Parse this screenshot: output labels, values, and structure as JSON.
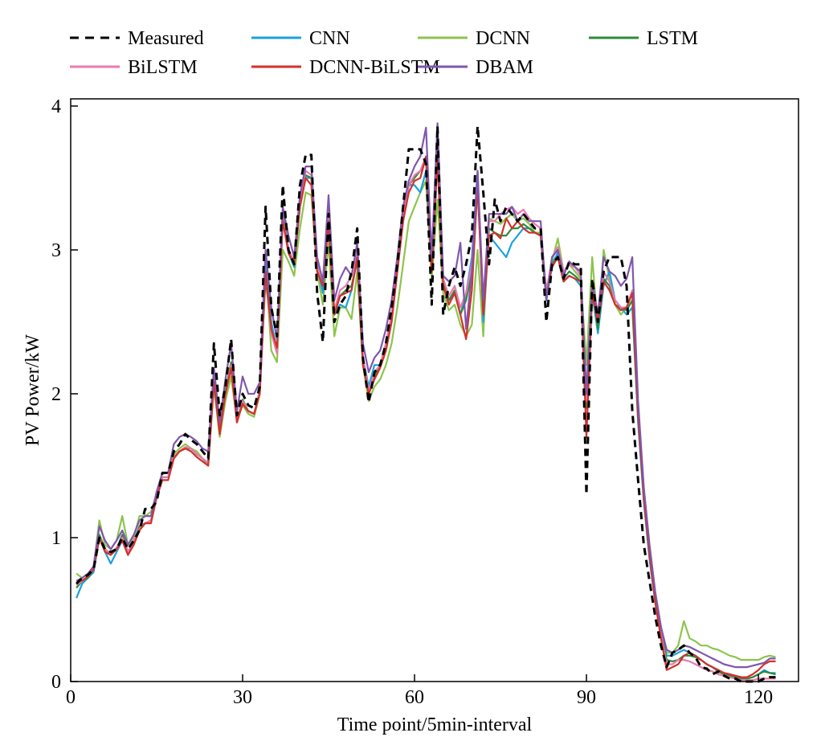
{
  "chart_data": {
    "type": "line",
    "xlabel": "Time point/5min-interval",
    "ylabel": "PV Power/kW",
    "xlim": [
      0,
      127
    ],
    "ylim": [
      0,
      4.05
    ],
    "xticks": [
      0,
      30,
      60,
      90,
      120
    ],
    "yticks": [
      0,
      1,
      2,
      3,
      4
    ],
    "grid": false,
    "legend_position": "top",
    "x": [
      1,
      2,
      3,
      4,
      5,
      6,
      7,
      8,
      9,
      10,
      11,
      12,
      13,
      14,
      15,
      16,
      17,
      18,
      19,
      20,
      21,
      22,
      23,
      24,
      25,
      26,
      27,
      28,
      29,
      30,
      31,
      32,
      33,
      34,
      35,
      36,
      37,
      38,
      39,
      40,
      41,
      42,
      43,
      44,
      45,
      46,
      47,
      48,
      49,
      50,
      51,
      52,
      53,
      54,
      55,
      56,
      57,
      58,
      59,
      60,
      61,
      62,
      63,
      64,
      65,
      66,
      67,
      68,
      69,
      70,
      71,
      72,
      73,
      74,
      75,
      76,
      77,
      78,
      79,
      80,
      81,
      82,
      83,
      84,
      85,
      86,
      87,
      88,
      89,
      90,
      91,
      92,
      93,
      94,
      95,
      96,
      97,
      98,
      99,
      100,
      101,
      102,
      103,
      104,
      105,
      106,
      107,
      108,
      109,
      110,
      111,
      112,
      113,
      114,
      115,
      116,
      117,
      118,
      119,
      120,
      121,
      122,
      123
    ],
    "series": [
      {
        "name": "Measured",
        "color": "#000000",
        "dash": true,
        "values": [
          0.68,
          0.72,
          0.74,
          0.78,
          1.0,
          0.92,
          0.9,
          0.92,
          1.0,
          0.92,
          0.98,
          1.05,
          1.2,
          1.2,
          1.25,
          1.45,
          1.45,
          1.6,
          1.65,
          1.72,
          1.68,
          1.65,
          1.6,
          1.55,
          2.35,
          1.85,
          2.05,
          2.38,
          1.85,
          2.0,
          1.92,
          1.9,
          2.05,
          3.3,
          2.6,
          2.4,
          3.45,
          3.0,
          2.9,
          3.45,
          3.66,
          3.66,
          2.7,
          2.36,
          3.25,
          2.5,
          2.62,
          2.68,
          2.85,
          3.15,
          2.25,
          1.94,
          2.15,
          2.2,
          2.35,
          2.6,
          2.9,
          3.3,
          3.7,
          3.7,
          3.7,
          3.6,
          2.62,
          3.86,
          2.55,
          2.75,
          2.88,
          2.75,
          2.9,
          3.1,
          3.86,
          3.4,
          2.9,
          3.35,
          3.2,
          3.3,
          3.25,
          3.2,
          3.25,
          3.2,
          3.15,
          3.15,
          2.5,
          2.9,
          2.95,
          2.8,
          2.92,
          2.9,
          2.9,
          1.3,
          2.8,
          2.5,
          2.85,
          2.95,
          2.95,
          2.95,
          2.75,
          1.88,
          1.4,
          0.95,
          0.7,
          0.45,
          0.25,
          0.1,
          0.2,
          0.22,
          0.25,
          0.2,
          0.17,
          0.1,
          0.09,
          0.05,
          0.07,
          0.04,
          0.02,
          0.02,
          0.0,
          0.0,
          0.0,
          0.0,
          0.02,
          0.03,
          0.03
        ]
      },
      {
        "name": "CNN",
        "color": "#1BA1DE",
        "values": [
          0.58,
          0.68,
          0.72,
          0.76,
          1.0,
          0.9,
          0.82,
          0.9,
          0.98,
          0.88,
          0.96,
          1.05,
          1.1,
          1.12,
          1.28,
          1.42,
          1.42,
          1.55,
          1.6,
          1.62,
          1.62,
          1.58,
          1.55,
          1.52,
          2.1,
          1.75,
          2.0,
          2.2,
          1.82,
          1.95,
          1.88,
          1.86,
          2.02,
          2.95,
          2.5,
          2.3,
          3.25,
          2.98,
          2.88,
          3.3,
          3.5,
          3.5,
          2.9,
          2.7,
          3.25,
          2.55,
          2.62,
          2.6,
          2.72,
          2.95,
          2.25,
          2.05,
          2.2,
          2.2,
          2.3,
          2.5,
          2.85,
          3.2,
          3.45,
          3.45,
          3.4,
          3.55,
          2.85,
          3.7,
          2.78,
          2.65,
          2.7,
          2.55,
          2.7,
          2.95,
          3.55,
          2.5,
          3.1,
          3.05,
          3.0,
          2.95,
          3.05,
          3.1,
          3.15,
          3.15,
          3.12,
          3.1,
          2.65,
          2.9,
          2.98,
          2.78,
          2.82,
          2.8,
          2.75,
          2.0,
          2.7,
          2.42,
          2.75,
          2.85,
          2.65,
          2.6,
          2.55,
          2.6,
          1.8,
          1.25,
          0.85,
          0.55,
          0.32,
          0.18,
          0.18,
          0.2,
          0.22,
          0.2,
          0.18,
          0.15,
          0.12,
          0.1,
          0.08,
          0.06,
          0.05,
          0.04,
          0.03,
          0.02,
          0.03,
          0.05,
          0.08,
          0.06,
          0.06
        ]
      },
      {
        "name": "DCNN",
        "color": "#8DC44E",
        "values": [
          0.75,
          0.72,
          0.75,
          0.8,
          1.12,
          0.95,
          0.92,
          0.98,
          1.15,
          0.95,
          1.0,
          1.15,
          1.15,
          1.18,
          1.3,
          1.45,
          1.45,
          1.58,
          1.62,
          1.65,
          1.62,
          1.6,
          1.55,
          1.5,
          2.05,
          1.7,
          1.95,
          2.12,
          1.82,
          1.92,
          1.86,
          1.84,
          2.0,
          2.9,
          2.3,
          2.22,
          3.0,
          2.92,
          2.82,
          3.15,
          3.4,
          3.38,
          2.85,
          2.62,
          3.05,
          2.4,
          2.6,
          2.6,
          2.52,
          2.85,
          2.2,
          1.95,
          2.05,
          2.1,
          2.2,
          2.35,
          2.6,
          2.9,
          3.2,
          3.3,
          3.4,
          3.48,
          2.8,
          3.35,
          2.7,
          2.58,
          2.62,
          2.48,
          2.4,
          2.48,
          3.0,
          2.4,
          3.22,
          3.2,
          3.18,
          3.22,
          3.25,
          3.2,
          3.22,
          3.18,
          3.12,
          3.12,
          2.72,
          2.92,
          3.08,
          2.85,
          2.9,
          2.85,
          2.8,
          2.2,
          2.95,
          2.45,
          3.0,
          2.8,
          2.62,
          2.55,
          2.6,
          2.7,
          1.88,
          1.35,
          0.95,
          0.62,
          0.38,
          0.2,
          0.2,
          0.25,
          0.42,
          0.3,
          0.28,
          0.25,
          0.25,
          0.23,
          0.22,
          0.2,
          0.18,
          0.17,
          0.15,
          0.15,
          0.15,
          0.15,
          0.17,
          0.18,
          0.17
        ]
      },
      {
        "name": "LSTM",
        "color": "#2E8B3A",
        "values": [
          0.65,
          0.7,
          0.72,
          0.78,
          1.02,
          0.92,
          0.88,
          0.92,
          1.02,
          0.9,
          0.97,
          1.08,
          1.1,
          1.12,
          1.3,
          1.42,
          1.42,
          1.56,
          1.6,
          1.62,
          1.62,
          1.58,
          1.55,
          1.52,
          2.12,
          1.75,
          2.02,
          2.22,
          1.82,
          1.96,
          1.88,
          1.86,
          2.02,
          2.8,
          2.45,
          2.3,
          3.28,
          3.0,
          2.9,
          3.32,
          3.52,
          3.5,
          2.85,
          2.75,
          3.22,
          2.55,
          2.68,
          2.72,
          2.75,
          2.92,
          2.2,
          2.0,
          2.12,
          2.2,
          2.35,
          2.55,
          2.9,
          3.25,
          3.45,
          3.5,
          3.55,
          3.62,
          2.85,
          3.68,
          2.78,
          2.65,
          2.72,
          2.55,
          2.65,
          2.85,
          3.45,
          2.6,
          3.15,
          3.12,
          3.1,
          3.1,
          3.15,
          3.15,
          3.18,
          3.15,
          3.12,
          3.1,
          2.65,
          2.9,
          2.95,
          2.8,
          2.85,
          2.82,
          2.78,
          1.9,
          2.72,
          2.45,
          2.8,
          2.75,
          2.62,
          2.6,
          2.58,
          2.65,
          1.85,
          1.3,
          0.9,
          0.6,
          0.35,
          0.15,
          0.14,
          0.15,
          0.18,
          0.18,
          0.17,
          0.15,
          0.12,
          0.1,
          0.07,
          0.05,
          0.04,
          0.03,
          0.02,
          0.02,
          0.03,
          0.05,
          0.07,
          0.06,
          0.05
        ]
      },
      {
        "name": "BiLSTM",
        "color": "#E87BAE",
        "values": [
          0.67,
          0.7,
          0.73,
          0.78,
          1.0,
          0.92,
          0.89,
          0.93,
          1.0,
          0.9,
          0.98,
          1.06,
          1.1,
          1.12,
          1.3,
          1.42,
          1.42,
          1.56,
          1.6,
          1.63,
          1.62,
          1.58,
          1.55,
          1.52,
          2.1,
          1.72,
          2.0,
          2.2,
          1.82,
          1.95,
          1.88,
          1.86,
          2.02,
          2.85,
          2.42,
          2.28,
          3.22,
          3.0,
          2.92,
          3.35,
          3.55,
          3.52,
          2.88,
          2.75,
          3.28,
          2.58,
          2.72,
          2.75,
          2.82,
          3.0,
          2.25,
          2.02,
          2.15,
          2.2,
          2.35,
          2.55,
          2.9,
          3.25,
          3.45,
          3.52,
          3.55,
          3.65,
          2.9,
          3.7,
          2.8,
          2.68,
          2.75,
          2.6,
          2.7,
          2.9,
          3.5,
          2.62,
          3.2,
          3.2,
          3.25,
          3.28,
          3.3,
          3.25,
          3.28,
          3.22,
          3.18,
          3.15,
          2.7,
          2.95,
          3.02,
          2.85,
          2.9,
          2.88,
          2.82,
          1.95,
          2.75,
          2.5,
          2.85,
          2.78,
          2.65,
          2.6,
          2.6,
          2.72,
          1.88,
          1.3,
          0.9,
          0.58,
          0.33,
          0.12,
          0.12,
          0.15,
          0.15,
          0.14,
          0.12,
          0.1,
          0.08,
          0.07,
          0.05,
          0.04,
          0.03,
          0.02,
          0.01,
          0.01,
          0.01,
          0.02,
          0.02,
          0.02,
          0.02
        ]
      },
      {
        "name": "DCNN-BiLSTM",
        "color": "#D2312A",
        "values": [
          0.7,
          0.7,
          0.73,
          0.78,
          1.0,
          0.9,
          0.88,
          0.92,
          0.98,
          0.88,
          0.95,
          1.05,
          1.1,
          1.1,
          1.28,
          1.4,
          1.4,
          1.55,
          1.6,
          1.62,
          1.6,
          1.56,
          1.53,
          1.5,
          2.08,
          1.72,
          2.0,
          2.18,
          1.8,
          1.93,
          1.88,
          1.86,
          2.0,
          2.85,
          2.45,
          2.32,
          3.2,
          2.98,
          2.9,
          3.3,
          3.5,
          3.45,
          2.85,
          2.75,
          3.2,
          2.55,
          2.68,
          2.7,
          2.72,
          2.95,
          2.2,
          2.0,
          2.1,
          2.18,
          2.3,
          2.5,
          2.85,
          3.2,
          3.4,
          3.48,
          3.5,
          3.65,
          2.85,
          3.62,
          2.75,
          2.62,
          2.7,
          2.55,
          2.38,
          2.72,
          3.45,
          2.55,
          3.1,
          3.12,
          3.08,
          3.22,
          3.15,
          3.2,
          3.15,
          3.12,
          3.12,
          3.1,
          2.68,
          2.88,
          2.95,
          2.78,
          2.82,
          2.8,
          2.78,
          1.7,
          2.7,
          2.5,
          2.78,
          2.72,
          2.62,
          2.58,
          2.6,
          2.7,
          1.85,
          1.28,
          0.88,
          0.55,
          0.3,
          0.08,
          0.1,
          0.12,
          0.18,
          0.2,
          0.18,
          0.15,
          0.12,
          0.1,
          0.08,
          0.06,
          0.05,
          0.04,
          0.03,
          0.03,
          0.05,
          0.08,
          0.12,
          0.14,
          0.14
        ]
      },
      {
        "name": "DBAM",
        "color": "#7F57AD",
        "values": [
          0.7,
          0.72,
          0.75,
          0.8,
          1.08,
          0.98,
          0.92,
          0.98,
          1.05,
          0.95,
          1.02,
          1.12,
          1.15,
          1.15,
          1.32,
          1.45,
          1.45,
          1.65,
          1.7,
          1.72,
          1.7,
          1.67,
          1.62,
          1.6,
          2.18,
          1.8,
          2.1,
          2.35,
          1.88,
          2.12,
          2.0,
          2.0,
          2.08,
          3.0,
          2.6,
          2.38,
          3.3,
          3.1,
          2.95,
          3.38,
          3.58,
          3.58,
          2.95,
          2.78,
          3.38,
          2.65,
          2.8,
          2.88,
          2.82,
          3.05,
          2.35,
          2.15,
          2.25,
          2.3,
          2.45,
          2.65,
          2.95,
          3.3,
          3.48,
          3.58,
          3.65,
          3.85,
          2.95,
          3.88,
          2.82,
          2.78,
          2.82,
          3.05,
          2.45,
          2.85,
          3.55,
          2.65,
          3.25,
          3.25,
          3.25,
          3.25,
          3.3,
          3.2,
          3.25,
          3.2,
          3.2,
          3.2,
          2.65,
          2.95,
          3.0,
          2.82,
          2.92,
          2.88,
          2.85,
          2.0,
          2.78,
          2.55,
          2.95,
          2.85,
          2.82,
          2.75,
          2.8,
          2.95,
          1.95,
          1.35,
          0.95,
          0.62,
          0.38,
          0.22,
          0.2,
          0.22,
          0.25,
          0.24,
          0.22,
          0.2,
          0.18,
          0.16,
          0.14,
          0.12,
          0.11,
          0.1,
          0.1,
          0.1,
          0.11,
          0.12,
          0.13,
          0.16,
          0.16
        ]
      }
    ]
  }
}
